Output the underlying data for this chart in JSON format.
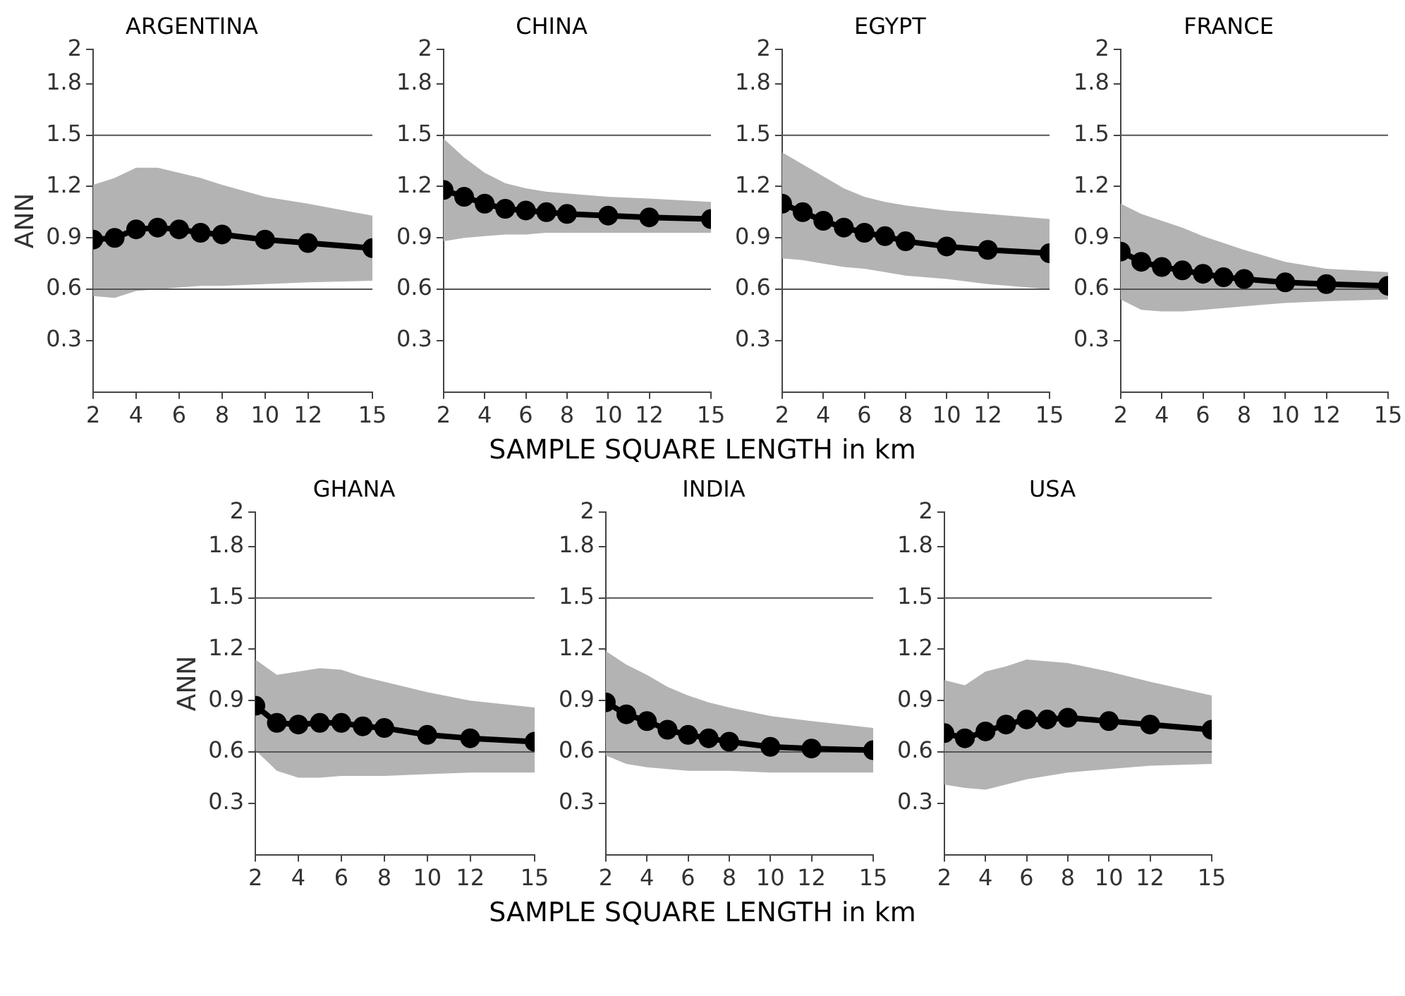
{
  "chart_data": [
    {
      "type": "line",
      "title": "ARGENTINA",
      "ylabel": "ANN",
      "x": [
        2,
        3,
        4,
        5,
        6,
        7,
        8,
        10,
        12,
        15
      ],
      "xlim": [
        2,
        15
      ],
      "xticks": [
        2,
        4,
        6,
        8,
        10,
        12,
        15
      ],
      "ylim": [
        0,
        2
      ],
      "yticks": [
        0.3,
        0.6,
        0.9,
        1.2,
        1.5,
        1.8,
        2
      ],
      "grid": false,
      "legend": false,
      "marker": "circle",
      "line_style": "solid",
      "ref_lines": [
        {
          "axis": "y",
          "value": 0.6
        },
        {
          "axis": "y",
          "value": 1.5
        }
      ],
      "series": [
        {
          "color": "#000000",
          "values": [
            0.89,
            0.9,
            0.95,
            0.96,
            0.95,
            0.93,
            0.92,
            0.89,
            0.87,
            0.84
          ],
          "lower": [
            0.56,
            0.55,
            0.59,
            0.6,
            0.61,
            0.62,
            0.62,
            0.63,
            0.64,
            0.65
          ],
          "upper": [
            1.21,
            1.25,
            1.31,
            1.31,
            1.28,
            1.25,
            1.21,
            1.14,
            1.1,
            1.03
          ]
        }
      ]
    },
    {
      "type": "line",
      "title": "CHINA",
      "x": [
        2,
        3,
        4,
        5,
        6,
        7,
        8,
        10,
        12,
        15
      ],
      "xlim": [
        2,
        15
      ],
      "xticks": [
        2,
        4,
        6,
        8,
        10,
        12,
        15
      ],
      "ylim": [
        0,
        2
      ],
      "yticks": [
        0.3,
        0.6,
        0.9,
        1.2,
        1.5,
        1.8,
        2
      ],
      "grid": false,
      "legend": false,
      "marker": "circle",
      "line_style": "solid",
      "ref_lines": [
        {
          "axis": "y",
          "value": 0.6
        },
        {
          "axis": "y",
          "value": 1.5
        }
      ],
      "series": [
        {
          "color": "#000000",
          "values": [
            1.18,
            1.14,
            1.1,
            1.07,
            1.06,
            1.05,
            1.04,
            1.03,
            1.02,
            1.01
          ],
          "lower": [
            0.88,
            0.9,
            0.91,
            0.92,
            0.92,
            0.93,
            0.93,
            0.93,
            0.93,
            0.93
          ],
          "upper": [
            1.48,
            1.37,
            1.28,
            1.22,
            1.19,
            1.17,
            1.16,
            1.14,
            1.13,
            1.11
          ]
        }
      ]
    },
    {
      "type": "line",
      "title": "EGYPT",
      "xlabel": "SAMPLE SQUARE LENGTH in km",
      "x": [
        2,
        3,
        4,
        5,
        6,
        7,
        8,
        10,
        12,
        15
      ],
      "xlim": [
        2,
        15
      ],
      "xticks": [
        2,
        4,
        6,
        8,
        10,
        12,
        15
      ],
      "ylim": [
        0,
        2
      ],
      "yticks": [
        0.3,
        0.6,
        0.9,
        1.2,
        1.5,
        1.8,
        2
      ],
      "grid": false,
      "legend": false,
      "marker": "circle",
      "line_style": "solid",
      "ref_lines": [
        {
          "axis": "y",
          "value": 0.6
        },
        {
          "axis": "y",
          "value": 1.5
        }
      ],
      "series": [
        {
          "color": "#000000",
          "values": [
            1.1,
            1.05,
            1.0,
            0.96,
            0.93,
            0.91,
            0.88,
            0.85,
            0.83,
            0.81
          ],
          "lower": [
            0.78,
            0.77,
            0.75,
            0.73,
            0.72,
            0.7,
            0.68,
            0.66,
            0.63,
            0.6
          ],
          "upper": [
            1.4,
            1.33,
            1.26,
            1.19,
            1.14,
            1.11,
            1.09,
            1.06,
            1.04,
            1.01
          ]
        }
      ]
    },
    {
      "type": "line",
      "title": "FRANCE",
      "x": [
        2,
        3,
        4,
        5,
        6,
        7,
        8,
        10,
        12,
        15
      ],
      "xlim": [
        2,
        15
      ],
      "xticks": [
        2,
        4,
        6,
        8,
        10,
        12,
        15
      ],
      "ylim": [
        0,
        2
      ],
      "yticks": [
        0.3,
        0.6,
        0.9,
        1.2,
        1.5,
        1.8,
        2
      ],
      "grid": false,
      "legend": false,
      "marker": "circle",
      "line_style": "solid",
      "ref_lines": [
        {
          "axis": "y",
          "value": 0.6
        },
        {
          "axis": "y",
          "value": 1.5
        }
      ],
      "series": [
        {
          "color": "#000000",
          "values": [
            0.82,
            0.76,
            0.73,
            0.71,
            0.69,
            0.67,
            0.66,
            0.64,
            0.63,
            0.62
          ],
          "lower": [
            0.54,
            0.48,
            0.47,
            0.47,
            0.48,
            0.49,
            0.5,
            0.52,
            0.53,
            0.54
          ],
          "upper": [
            1.1,
            1.04,
            1.0,
            0.96,
            0.91,
            0.87,
            0.83,
            0.76,
            0.72,
            0.7
          ]
        }
      ]
    },
    {
      "type": "line",
      "title": "GHANA",
      "ylabel": "ANN",
      "x": [
        2,
        3,
        4,
        5,
        6,
        7,
        8,
        10,
        12,
        15
      ],
      "xlim": [
        2,
        15
      ],
      "xticks": [
        2,
        4,
        6,
        8,
        10,
        12,
        15
      ],
      "ylim": [
        0,
        2
      ],
      "yticks": [
        0.3,
        0.6,
        0.9,
        1.2,
        1.5,
        1.8,
        2
      ],
      "grid": false,
      "legend": false,
      "marker": "circle",
      "line_style": "solid",
      "ref_lines": [
        {
          "axis": "y",
          "value": 0.6
        },
        {
          "axis": "y",
          "value": 1.5
        }
      ],
      "series": [
        {
          "color": "#000000",
          "values": [
            0.87,
            0.77,
            0.76,
            0.77,
            0.77,
            0.75,
            0.74,
            0.7,
            0.68,
            0.66
          ],
          "lower": [
            0.61,
            0.49,
            0.45,
            0.45,
            0.46,
            0.46,
            0.46,
            0.47,
            0.48,
            0.48
          ],
          "upper": [
            1.14,
            1.05,
            1.07,
            1.09,
            1.08,
            1.04,
            1.01,
            0.95,
            0.9,
            0.86
          ]
        }
      ]
    },
    {
      "type": "line",
      "title": "INDIA",
      "xlabel": "SAMPLE SQUARE LENGTH in km",
      "x": [
        2,
        3,
        4,
        5,
        6,
        7,
        8,
        10,
        12,
        15
      ],
      "xlim": [
        2,
        15
      ],
      "xticks": [
        2,
        4,
        6,
        8,
        10,
        12,
        15
      ],
      "ylim": [
        0,
        2
      ],
      "yticks": [
        0.3,
        0.6,
        0.9,
        1.2,
        1.5,
        1.8,
        2
      ],
      "grid": false,
      "legend": false,
      "marker": "circle",
      "line_style": "solid",
      "ref_lines": [
        {
          "axis": "y",
          "value": 0.6
        },
        {
          "axis": "y",
          "value": 1.5
        }
      ],
      "series": [
        {
          "color": "#000000",
          "values": [
            0.89,
            0.82,
            0.78,
            0.73,
            0.7,
            0.68,
            0.66,
            0.63,
            0.62,
            0.61
          ],
          "lower": [
            0.58,
            0.53,
            0.51,
            0.5,
            0.49,
            0.49,
            0.49,
            0.48,
            0.48,
            0.48
          ],
          "upper": [
            1.19,
            1.11,
            1.05,
            0.98,
            0.93,
            0.89,
            0.86,
            0.81,
            0.78,
            0.74
          ]
        }
      ]
    },
    {
      "type": "line",
      "title": "USA",
      "x": [
        2,
        3,
        4,
        5,
        6,
        7,
        8,
        10,
        12,
        15
      ],
      "xlim": [
        2,
        15
      ],
      "xticks": [
        2,
        4,
        6,
        8,
        10,
        12,
        15
      ],
      "ylim": [
        0,
        2
      ],
      "yticks": [
        0.3,
        0.6,
        0.9,
        1.2,
        1.5,
        1.8,
        2
      ],
      "grid": false,
      "legend": false,
      "marker": "circle",
      "line_style": "solid",
      "ref_lines": [
        {
          "axis": "y",
          "value": 0.6
        },
        {
          "axis": "y",
          "value": 1.5
        }
      ],
      "series": [
        {
          "color": "#000000",
          "values": [
            0.71,
            0.68,
            0.72,
            0.76,
            0.79,
            0.79,
            0.8,
            0.78,
            0.76,
            0.73
          ],
          "lower": [
            0.41,
            0.39,
            0.38,
            0.41,
            0.44,
            0.46,
            0.48,
            0.5,
            0.52,
            0.53
          ],
          "upper": [
            1.02,
            0.99,
            1.07,
            1.1,
            1.14,
            1.13,
            1.12,
            1.07,
            1.01,
            0.93
          ]
        }
      ]
    }
  ]
}
